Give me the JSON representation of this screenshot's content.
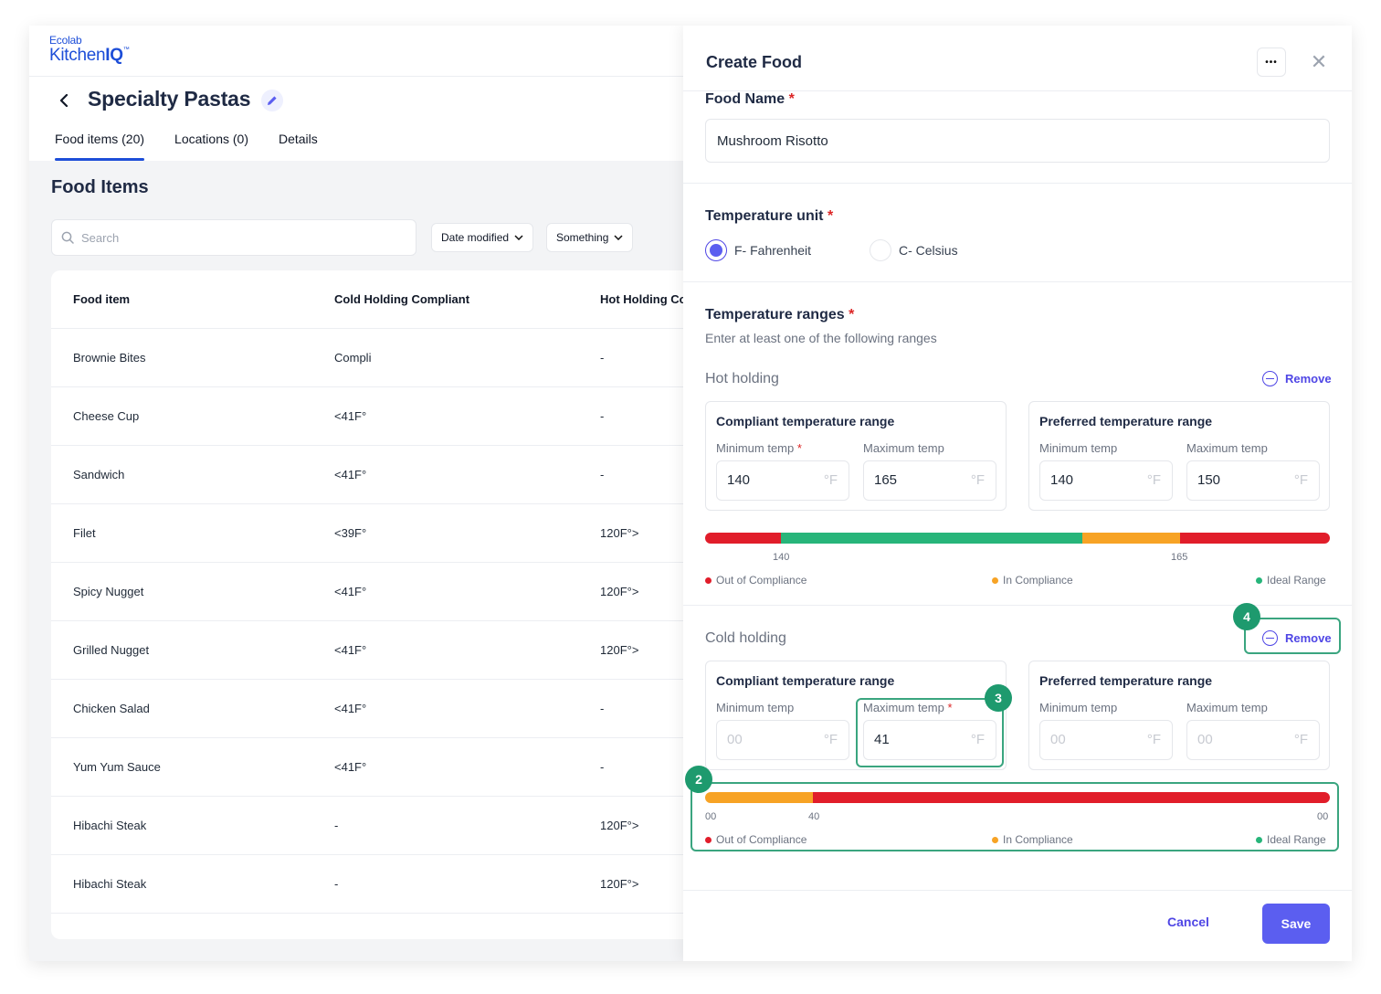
{
  "logo": {
    "brand": "Ecolab",
    "product_a": "Kitchen",
    "product_b": "IQ",
    "tm": "™"
  },
  "page": {
    "title": "Specialty Pastas"
  },
  "tabs": [
    {
      "label": "Food items (20)"
    },
    {
      "label": "Locations (0)"
    },
    {
      "label": "Details"
    }
  ],
  "food_section": {
    "title": "Food Items",
    "search_placeholder": "Search",
    "filters": [
      {
        "label": "Date modified"
      },
      {
        "label": "Something"
      }
    ]
  },
  "table": {
    "headers": [
      "Food item",
      "Cold Holding Compliant",
      "Hot Holding Co"
    ],
    "rows": [
      [
        "Brownie Bites",
        "Compli",
        "-"
      ],
      [
        "Cheese Cup",
        "<41F°",
        "-"
      ],
      [
        "Sandwich",
        "<41F°",
        "-"
      ],
      [
        "Filet",
        "<39F°",
        "120F°>"
      ],
      [
        "Spicy Nugget",
        "<41F°",
        "120F°>"
      ],
      [
        "Grilled Nugget",
        "<41F°",
        "120F°>"
      ],
      [
        "Chicken Salad",
        "<41F°",
        "-"
      ],
      [
        "Yum Yum Sauce",
        "<41F°",
        "-"
      ],
      [
        "Hibachi Steak",
        "-",
        "120F°>"
      ],
      [
        "Hibachi Steak",
        "-",
        "120F°>"
      ]
    ]
  },
  "panel": {
    "title": "Create Food",
    "more_label": "•••",
    "close_label": "✕",
    "food_name_label": "Food Name",
    "food_name_value": "Mushroom Risotto",
    "required_mark": "*",
    "temp_unit_label": "Temperature unit",
    "units": [
      {
        "label": "F- Fahrenheit",
        "selected": true
      },
      {
        "label": "C- Celsius",
        "selected": false
      }
    ],
    "ranges_label": "Temperature ranges",
    "ranges_help": "Enter at least one of the following ranges",
    "remove_label": "Remove",
    "compliant_label": "Compliant temperature range",
    "preferred_label": "Preferred temperature range",
    "min_label": "Minimum temp",
    "max_label": "Maximum temp",
    "unit_symbol": "°F",
    "legend": [
      "Out of Compliance",
      "In Compliance",
      "Ideal Range"
    ],
    "hot": {
      "title": "Hot holding",
      "compliant_min": "140",
      "compliant_max": "165",
      "preferred_min": "140",
      "preferred_max": "150",
      "tick_a": "140",
      "tick_b": "165"
    },
    "cold": {
      "title": "Cold holding",
      "compliant_min_placeholder": "00",
      "compliant_max": "41",
      "preferred_min_placeholder": "00",
      "preferred_max_placeholder": "00",
      "tick_a": "00",
      "tick_b": "40",
      "tick_c": "00"
    },
    "annotations": [
      "2",
      "3",
      "4"
    ],
    "cancel_label": "Cancel",
    "save_label": "Save"
  },
  "colors": {
    "out": "#e11d2a",
    "in": "#f7a325",
    "ideal": "#27b57a",
    "accent": "#5b5ef0",
    "highlight": "#3aa57f"
  },
  "icons": [
    "back-chevron-icon",
    "pencil-icon",
    "search-icon",
    "chevron-down-icon",
    "more-icon",
    "close-icon",
    "minus-circle-icon"
  ]
}
